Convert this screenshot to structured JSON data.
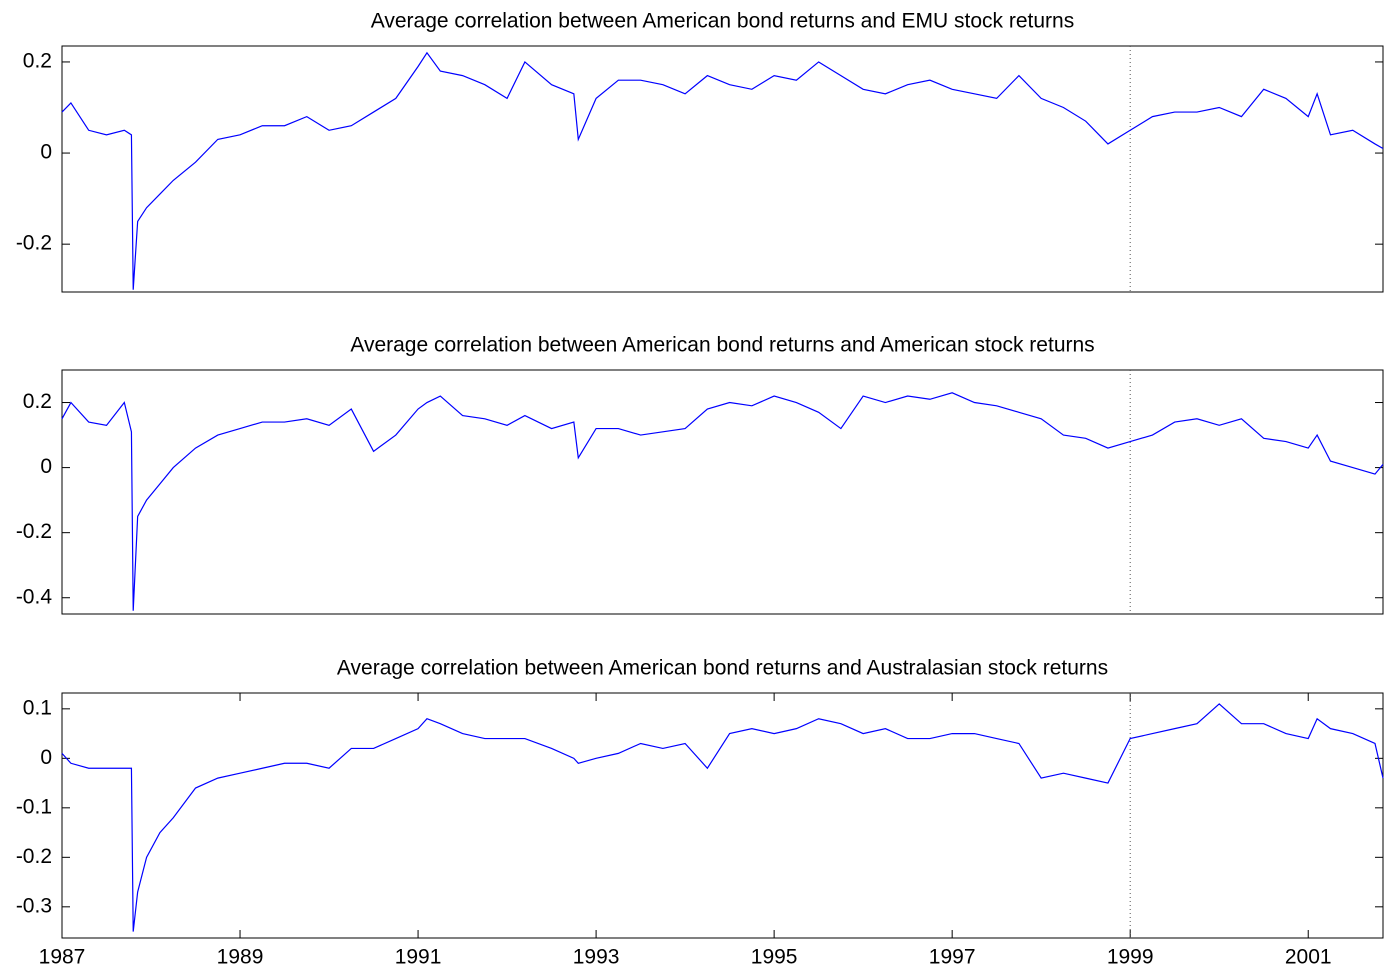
{
  "chart_data": [
    {
      "type": "line",
      "title": "Average correlation between American bond returns and EMU stock returns",
      "x": [
        1987.0,
        1987.1,
        1987.3,
        1987.5,
        1987.7,
        1987.78,
        1987.8,
        1987.85,
        1987.95,
        1988.1,
        1988.25,
        1988.5,
        1988.75,
        1989.0,
        1989.25,
        1989.5,
        1989.75,
        1990.0,
        1990.25,
        1990.5,
        1990.75,
        1991.0,
        1991.1,
        1991.25,
        1991.5,
        1991.75,
        1992.0,
        1992.2,
        1992.5,
        1992.75,
        1992.8,
        1993.0,
        1993.25,
        1993.5,
        1993.75,
        1994.0,
        1994.25,
        1994.5,
        1994.75,
        1995.0,
        1995.25,
        1995.5,
        1995.75,
        1996.0,
        1996.25,
        1996.5,
        1996.75,
        1997.0,
        1997.25,
        1997.5,
        1997.75,
        1998.0,
        1998.25,
        1998.5,
        1998.75,
        1999.0,
        1999.25,
        1999.5,
        1999.75,
        2000.0,
        2000.25,
        2000.5,
        2000.75,
        2001.0,
        2001.1,
        2001.25,
        2001.5,
        2001.75,
        2001.84
      ],
      "series": [
        {
          "color": "#0000ff",
          "values": [
            0.09,
            0.11,
            0.05,
            0.04,
            0.05,
            0.04,
            -0.3,
            -0.15,
            -0.12,
            -0.09,
            -0.06,
            -0.02,
            0.03,
            0.04,
            0.06,
            0.06,
            0.08,
            0.05,
            0.06,
            0.09,
            0.12,
            0.19,
            0.22,
            0.18,
            0.17,
            0.15,
            0.12,
            0.2,
            0.15,
            0.13,
            0.03,
            0.12,
            0.16,
            0.16,
            0.15,
            0.13,
            0.17,
            0.15,
            0.14,
            0.17,
            0.16,
            0.2,
            0.17,
            0.14,
            0.13,
            0.15,
            0.16,
            0.14,
            0.13,
            0.12,
            0.17,
            0.12,
            0.1,
            0.07,
            0.02,
            0.05,
            0.08,
            0.09,
            0.09,
            0.1,
            0.08,
            0.14,
            0.12,
            0.08,
            0.13,
            0.04,
            0.05,
            0.02,
            0.01
          ]
        }
      ],
      "xlim": [
        1987,
        2001.84
      ],
      "ylim": [
        -0.305,
        0.235
      ],
      "yticks": [
        -0.2,
        0,
        0.2
      ],
      "vline": 1999
    },
    {
      "type": "line",
      "title": "Average correlation between American bond returns and American stock returns",
      "x": [
        1987.0,
        1987.1,
        1987.3,
        1987.5,
        1987.7,
        1987.78,
        1987.8,
        1987.85,
        1987.95,
        1988.1,
        1988.25,
        1988.5,
        1988.75,
        1989.0,
        1989.25,
        1989.5,
        1989.75,
        1990.0,
        1990.25,
        1990.5,
        1990.75,
        1991.0,
        1991.1,
        1991.25,
        1991.5,
        1991.75,
        1992.0,
        1992.2,
        1992.5,
        1992.75,
        1992.8,
        1993.0,
        1993.25,
        1993.5,
        1993.75,
        1994.0,
        1994.25,
        1994.5,
        1994.75,
        1995.0,
        1995.25,
        1995.5,
        1995.75,
        1996.0,
        1996.25,
        1996.5,
        1996.75,
        1997.0,
        1997.25,
        1997.5,
        1997.75,
        1998.0,
        1998.25,
        1998.5,
        1998.75,
        1999.0,
        1999.25,
        1999.5,
        1999.75,
        2000.0,
        2000.25,
        2000.5,
        2000.75,
        2001.0,
        2001.1,
        2001.25,
        2001.5,
        2001.75,
        2001.84
      ],
      "series": [
        {
          "color": "#0000ff",
          "values": [
            0.15,
            0.2,
            0.14,
            0.13,
            0.2,
            0.11,
            -0.44,
            -0.15,
            -0.1,
            -0.05,
            0.0,
            0.06,
            0.1,
            0.12,
            0.14,
            0.14,
            0.15,
            0.13,
            0.18,
            0.05,
            0.1,
            0.18,
            0.2,
            0.22,
            0.16,
            0.15,
            0.13,
            0.16,
            0.12,
            0.14,
            0.03,
            0.12,
            0.12,
            0.1,
            0.11,
            0.12,
            0.18,
            0.2,
            0.19,
            0.22,
            0.2,
            0.17,
            0.12,
            0.22,
            0.2,
            0.22,
            0.21,
            0.23,
            0.2,
            0.19,
            0.17,
            0.15,
            0.1,
            0.09,
            0.06,
            0.08,
            0.1,
            0.14,
            0.15,
            0.13,
            0.15,
            0.09,
            0.08,
            0.06,
            0.1,
            0.02,
            0.0,
            -0.02,
            0.01
          ]
        }
      ],
      "xlim": [
        1987,
        2001.84
      ],
      "ylim": [
        -0.45,
        0.3
      ],
      "yticks": [
        -0.4,
        -0.2,
        0,
        0.2
      ],
      "vline": 1999
    },
    {
      "type": "line",
      "title": "Average correlation between American bond returns and Australasian stock returns",
      "x": [
        1987.0,
        1987.1,
        1987.3,
        1987.5,
        1987.7,
        1987.78,
        1987.8,
        1987.85,
        1987.95,
        1988.1,
        1988.25,
        1988.5,
        1988.75,
        1989.0,
        1989.25,
        1989.5,
        1989.75,
        1990.0,
        1990.25,
        1990.5,
        1990.75,
        1991.0,
        1991.1,
        1991.25,
        1991.5,
        1991.75,
        1992.0,
        1992.2,
        1992.5,
        1992.75,
        1992.8,
        1993.0,
        1993.25,
        1993.5,
        1993.75,
        1994.0,
        1994.25,
        1994.5,
        1994.75,
        1995.0,
        1995.25,
        1995.5,
        1995.75,
        1996.0,
        1996.25,
        1996.5,
        1996.75,
        1997.0,
        1997.25,
        1997.5,
        1997.75,
        1998.0,
        1998.25,
        1998.5,
        1998.75,
        1999.0,
        1999.25,
        1999.5,
        1999.75,
        2000.0,
        2000.25,
        2000.5,
        2000.75,
        2001.0,
        2001.1,
        2001.25,
        2001.5,
        2001.75,
        2001.84
      ],
      "series": [
        {
          "color": "#0000ff",
          "values": [
            0.01,
            -0.01,
            -0.02,
            -0.02,
            -0.02,
            -0.02,
            -0.35,
            -0.27,
            -0.2,
            -0.15,
            -0.12,
            -0.06,
            -0.04,
            -0.03,
            -0.02,
            -0.01,
            -0.01,
            -0.02,
            0.02,
            0.02,
            0.04,
            0.06,
            0.08,
            0.07,
            0.05,
            0.04,
            0.04,
            0.04,
            0.02,
            0.0,
            -0.01,
            0.0,
            0.01,
            0.03,
            0.02,
            0.03,
            -0.02,
            0.05,
            0.06,
            0.05,
            0.06,
            0.08,
            0.07,
            0.05,
            0.06,
            0.04,
            0.04,
            0.05,
            0.05,
            0.04,
            0.03,
            -0.04,
            -0.03,
            -0.04,
            -0.05,
            0.04,
            0.05,
            0.06,
            0.07,
            0.11,
            0.07,
            0.07,
            0.05,
            0.04,
            0.08,
            0.06,
            0.05,
            0.03,
            -0.04
          ]
        }
      ],
      "xlim": [
        1987,
        2001.84
      ],
      "ylim": [
        -0.363,
        0.132
      ],
      "yticks": [
        -0.3,
        -0.2,
        -0.1,
        0,
        0.1
      ],
      "vline": 1999,
      "xticks": [
        1987,
        1989,
        1991,
        1993,
        1995,
        1997,
        1999,
        2001
      ]
    }
  ]
}
